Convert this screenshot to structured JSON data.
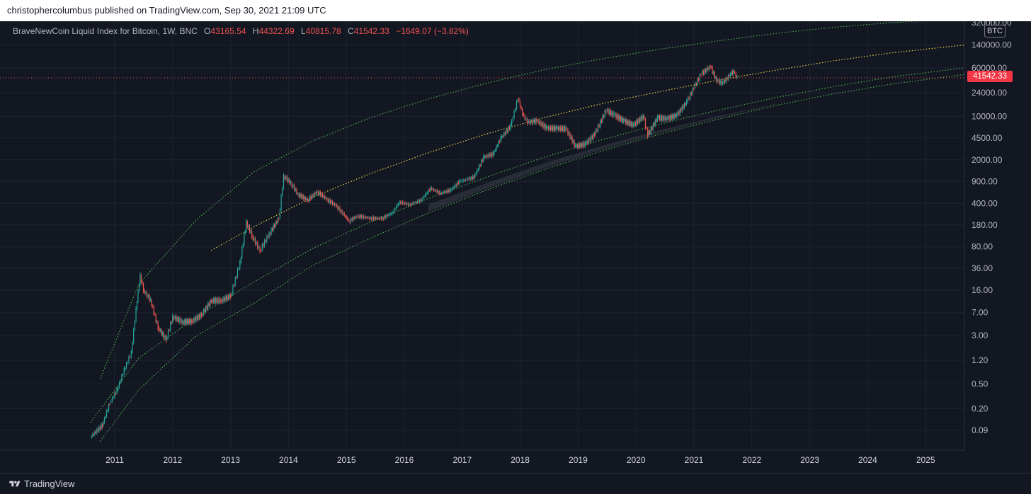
{
  "header": {
    "publisher_text": "christophercolumbus published on TradingView.com, Sep 30, 2021 21:09 UTC"
  },
  "legend": {
    "symbol": "BraveNewCoin Liquid Index for Bitcoin, 1W, BNC",
    "open_label": "O",
    "open": "43165.54",
    "high_label": "H",
    "high": "44322.69",
    "low_label": "L",
    "low": "40815.78",
    "close_label": "C",
    "close": "41542.33",
    "change": "−1649.07 (−3.82%)"
  },
  "price_scale": {
    "currency_badge": "BTC",
    "last_price": "41542.33"
  },
  "footer": {
    "brand": "TradingView"
  },
  "colors": {
    "background": "#131722",
    "grid": "#1f2330",
    "up": "#26a69a",
    "down": "#ef5350",
    "band_upper": "#4caf50",
    "band_lower": "#4caf50",
    "band_mid": "#e6d34b",
    "fill": "#787b86"
  },
  "chart_data": {
    "type": "line",
    "scale": "log",
    "grid": true,
    "y_ticks": [
      "320000.00",
      "140000.00",
      "60000.00",
      "24000.00",
      "10000.00",
      "4500.00",
      "2000.00",
      "900.00",
      "400.00",
      "180.00",
      "80.00",
      "36.00",
      "16.00",
      "7.00",
      "3.00",
      "1.20",
      "0.50",
      "0.20",
      "0.09"
    ],
    "x_ticks": [
      "2011",
      "2012",
      "2013",
      "2014",
      "2015",
      "2016",
      "2017",
      "2018",
      "2019",
      "2020",
      "2021",
      "2022",
      "2023",
      "2024",
      "2025"
    ],
    "last_price": 41542.33,
    "series": [
      {
        "kind": "candles",
        "points": [
          [
            "2010-08-01",
            0.07
          ],
          [
            "2010-10-15",
            0.11
          ],
          [
            "2010-12-01",
            0.25
          ],
          [
            "2011-01-15",
            0.4
          ],
          [
            "2011-03-01",
            0.85
          ],
          [
            "2011-04-15",
            1.6
          ],
          [
            "2011-05-15",
            8
          ],
          [
            "2011-06-10",
            28
          ],
          [
            "2011-07-01",
            16
          ],
          [
            "2011-08-15",
            11
          ],
          [
            "2011-10-01",
            4
          ],
          [
            "2011-11-20",
            2.6
          ],
          [
            "2012-01-01",
            6
          ],
          [
            "2012-03-01",
            5
          ],
          [
            "2012-05-01",
            5.1
          ],
          [
            "2012-07-01",
            6.5
          ],
          [
            "2012-09-01",
            11
          ],
          [
            "2012-11-01",
            11
          ],
          [
            "2013-01-01",
            13
          ],
          [
            "2013-03-01",
            45
          ],
          [
            "2013-04-10",
            200
          ],
          [
            "2013-05-15",
            120
          ],
          [
            "2013-07-05",
            70
          ],
          [
            "2013-09-01",
            130
          ],
          [
            "2013-11-01",
            230
          ],
          [
            "2013-12-01",
            1100
          ],
          [
            "2014-01-15",
            850
          ],
          [
            "2014-03-01",
            560
          ],
          [
            "2014-05-01",
            450
          ],
          [
            "2014-07-01",
            620
          ],
          [
            "2014-09-01",
            460
          ],
          [
            "2014-11-01",
            360
          ],
          [
            "2015-01-15",
            210
          ],
          [
            "2015-03-15",
            250
          ],
          [
            "2015-06-01",
            230
          ],
          [
            "2015-08-15",
            230
          ],
          [
            "2015-10-15",
            280
          ],
          [
            "2015-12-01",
            420
          ],
          [
            "2016-02-01",
            380
          ],
          [
            "2016-04-15",
            450
          ],
          [
            "2016-06-15",
            700
          ],
          [
            "2016-08-15",
            580
          ],
          [
            "2016-10-15",
            650
          ],
          [
            "2016-12-15",
            900
          ],
          [
            "2017-01-15",
            950
          ],
          [
            "2017-03-15",
            1050
          ],
          [
            "2017-05-15",
            2200
          ],
          [
            "2017-07-15",
            2500
          ],
          [
            "2017-09-01",
            4500
          ],
          [
            "2017-11-01",
            7000
          ],
          [
            "2017-12-17",
            19500
          ],
          [
            "2018-01-15",
            11000
          ],
          [
            "2018-02-15",
            8000
          ],
          [
            "2018-04-15",
            8500
          ],
          [
            "2018-06-15",
            6500
          ],
          [
            "2018-08-15",
            6400
          ],
          [
            "2018-10-15",
            6300
          ],
          [
            "2018-12-15",
            3300
          ],
          [
            "2019-02-15",
            3600
          ],
          [
            "2019-04-15",
            5200
          ],
          [
            "2019-06-26",
            12500
          ],
          [
            "2019-08-15",
            10500
          ],
          [
            "2019-10-15",
            8500
          ],
          [
            "2019-12-15",
            7200
          ],
          [
            "2020-02-15",
            10000
          ],
          [
            "2020-03-15",
            5000
          ],
          [
            "2020-05-15",
            9500
          ],
          [
            "2020-07-15",
            9200
          ],
          [
            "2020-09-15",
            10500
          ],
          [
            "2020-11-15",
            17000
          ],
          [
            "2020-12-31",
            29000
          ],
          [
            "2021-02-15",
            48000
          ],
          [
            "2021-04-14",
            63000
          ],
          [
            "2021-05-25",
            37000
          ],
          [
            "2021-07-01",
            34000
          ],
          [
            "2021-08-20",
            48000
          ],
          [
            "2021-09-07",
            52000
          ],
          [
            "2021-09-30",
            41542
          ]
        ]
      },
      {
        "kind": "band_upper",
        "points": [
          [
            "2010-10-01",
            0.6
          ],
          [
            "2011-06-01",
            20
          ],
          [
            "2012-06-01",
            220
          ],
          [
            "2013-06-01",
            1300
          ],
          [
            "2014-06-01",
            4000
          ],
          [
            "2015-06-01",
            9500
          ],
          [
            "2016-06-01",
            19000
          ],
          [
            "2017-06-01",
            34000
          ],
          [
            "2018-06-01",
            56000
          ],
          [
            "2019-06-01",
            84000
          ],
          [
            "2020-06-01",
            120000
          ],
          [
            "2021-06-01",
            163000
          ],
          [
            "2022-06-01",
            215000
          ],
          [
            "2023-06-01",
            270000
          ],
          [
            "2024-06-01",
            320000
          ],
          [
            "2025-09-01",
            380000
          ]
        ]
      },
      {
        "kind": "band_mid",
        "points": [
          [
            "2012-09-01",
            70
          ],
          [
            "2013-06-01",
            170
          ],
          [
            "2014-06-01",
            500
          ],
          [
            "2015-06-01",
            1200
          ],
          [
            "2016-06-01",
            2600
          ],
          [
            "2017-06-01",
            5200
          ],
          [
            "2018-06-01",
            9500
          ],
          [
            "2019-06-01",
            16000
          ],
          [
            "2020-06-01",
            25000
          ],
          [
            "2021-06-01",
            38000
          ],
          [
            "2022-06-01",
            55000
          ],
          [
            "2023-06-01",
            78000
          ],
          [
            "2024-06-01",
            105000
          ],
          [
            "2025-09-01",
            140000
          ]
        ]
      },
      {
        "kind": "band_lower",
        "points": [
          [
            "2010-08-01",
            0.12
          ],
          [
            "2011-06-01",
            1.3
          ],
          [
            "2012-06-01",
            6
          ],
          [
            "2013-06-01",
            22
          ],
          [
            "2014-06-01",
            75
          ],
          [
            "2015-06-01",
            200
          ],
          [
            "2016-06-01",
            480
          ],
          [
            "2017-06-01",
            1050
          ],
          [
            "2018-06-01",
            2200
          ],
          [
            "2019-06-01",
            4200
          ],
          [
            "2020-06-01",
            7500
          ],
          [
            "2021-06-01",
            12500
          ],
          [
            "2022-06-01",
            20000
          ],
          [
            "2023-06-01",
            30000
          ],
          [
            "2024-06-01",
            43000
          ],
          [
            "2025-09-01",
            60000
          ]
        ]
      },
      {
        "kind": "band_lowest",
        "points": [
          [
            "2010-10-01",
            0.06
          ],
          [
            "2011-06-01",
            0.4
          ],
          [
            "2012-06-01",
            3
          ],
          [
            "2013-06-01",
            10
          ],
          [
            "2014-06-01",
            40
          ],
          [
            "2015-06-01",
            110
          ],
          [
            "2016-06-01",
            280
          ],
          [
            "2017-06-01",
            650
          ],
          [
            "2018-06-01",
            1400
          ],
          [
            "2019-06-01",
            2800
          ],
          [
            "2020-06-01",
            5200
          ],
          [
            "2021-06-01",
            9000
          ],
          [
            "2022-06-01",
            15000
          ],
          [
            "2023-06-01",
            23000
          ],
          [
            "2024-06-01",
            33000
          ],
          [
            "2025-09-01",
            47000
          ]
        ]
      }
    ]
  }
}
